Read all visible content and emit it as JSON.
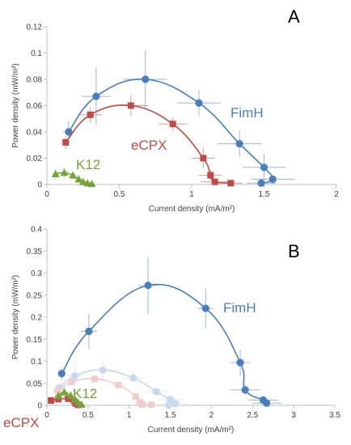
{
  "chart_data": [
    {
      "panel_label": "A",
      "type": "line",
      "title": "",
      "xlabel": "Current density (mA/m²)",
      "ylabel": "Power density (mW/m²)",
      "xlim": [
        0,
        2
      ],
      "ylim": [
        0,
        0.12
      ],
      "x_ticks": [
        "0",
        "0.5",
        "1",
        "1.5",
        "2"
      ],
      "y_ticks": [
        "0",
        "0.02",
        "0.04",
        "0.06",
        "0.08",
        "0.1",
        "0.12"
      ],
      "grid": false,
      "series": [
        {
          "name": "FimH",
          "color": "#4a7ebb",
          "marker": "circle",
          "x": [
            0.15,
            0.34,
            0.68,
            1.05,
            1.33,
            1.5,
            1.56,
            1.48
          ],
          "y": [
            0.04,
            0.067,
            0.08,
            0.062,
            0.031,
            0.013,
            0.004,
            0.001
          ],
          "x_err": [
            0.04,
            0.1,
            0.15,
            0.15,
            0.15,
            0.15,
            0.15,
            0.1
          ],
          "y_err": [
            0.008,
            0.022,
            0.022,
            0.01,
            0.01,
            0.01,
            0.003,
            0.002
          ]
        },
        {
          "name": "eCPX",
          "color": "#be4b48",
          "marker": "square",
          "x": [
            0.13,
            0.3,
            0.58,
            0.87,
            1.08,
            1.13,
            1.16,
            1.27
          ],
          "y": [
            0.032,
            0.053,
            0.06,
            0.046,
            0.02,
            0.007,
            0.002,
            0.001
          ],
          "x_err": [
            0.03,
            0.08,
            0.12,
            0.1,
            0.08,
            0.08,
            0.1,
            0.08
          ],
          "y_err": [
            0.005,
            0.006,
            0.008,
            0.005,
            0.008,
            0.004,
            0.002,
            0.001
          ]
        },
        {
          "name": "K12",
          "color": "#77a33c",
          "marker": "triangle",
          "x": [
            0.06,
            0.12,
            0.18,
            0.22,
            0.25,
            0.28,
            0.31
          ],
          "y": [
            0.008,
            0.009,
            0.007,
            0.004,
            0.002,
            0.001,
            0.0005
          ],
          "x_err": [
            0.02,
            0.02,
            0.02,
            0.02,
            0.02,
            0.02,
            0.02
          ],
          "y_err": [
            0.004,
            0.004,
            0.003,
            0.003,
            0.002,
            0.001,
            0.001
          ]
        }
      ]
    },
    {
      "panel_label": "B",
      "type": "line",
      "title": "",
      "xlabel": "Current density (mA/m²)",
      "ylabel": "Power density (mW/m²)",
      "xlim": [
        0,
        3.5
      ],
      "ylim": [
        0,
        0.4
      ],
      "x_ticks": [
        "0",
        "0.5",
        "1",
        "1.5",
        "2",
        "2.5",
        "3",
        "3.5"
      ],
      "y_ticks": [
        "0",
        "0.05",
        "0.1",
        "0.15",
        "0.2",
        "0.25",
        "0.3",
        "0.35",
        "0.4"
      ],
      "grid": false,
      "series": [
        {
          "name": "FimH",
          "color": "#4a7ebb",
          "marker": "circle",
          "x": [
            0.18,
            0.51,
            1.23,
            1.93,
            2.35,
            2.41,
            2.63,
            2.67
          ],
          "y": [
            0.072,
            0.168,
            0.272,
            0.22,
            0.097,
            0.035,
            0.012,
            0.005
          ],
          "x_err": [
            0.05,
            0.1,
            0.12,
            0.1,
            0.12,
            0.18,
            0.18,
            0.18
          ],
          "y_err": [
            0.015,
            0.04,
            0.065,
            0.045,
            0.03,
            0.012,
            0.006,
            0.004
          ]
        },
        {
          "name": "FimH (faded)",
          "color": "#c8d8ee",
          "marker": "circle",
          "x": [
            0.15,
            0.34,
            0.68,
            1.05,
            1.33,
            1.5,
            1.56,
            1.48
          ],
          "y": [
            0.04,
            0.067,
            0.08,
            0.062,
            0.031,
            0.013,
            0.004,
            0.001
          ],
          "x_err": [
            0.04,
            0.1,
            0.15,
            0.15,
            0.15,
            0.15,
            0.15,
            0.1
          ],
          "y_err": [
            0.008,
            0.022,
            0.022,
            0.01,
            0.01,
            0.01,
            0.003,
            0.002
          ]
        },
        {
          "name": "eCPX (faded)",
          "color": "#f0cccc",
          "marker": "square",
          "x": [
            0.13,
            0.3,
            0.58,
            0.87,
            1.08,
            1.13,
            1.16,
            1.27
          ],
          "y": [
            0.032,
            0.053,
            0.06,
            0.046,
            0.02,
            0.007,
            0.002,
            0.001
          ],
          "x_err": [
            0.03,
            0.08,
            0.12,
            0.1,
            0.08,
            0.08,
            0.1,
            0.08
          ],
          "y_err": [
            0.005,
            0.006,
            0.008,
            0.005,
            0.008,
            0.004,
            0.002,
            0.001
          ]
        },
        {
          "name": "eCPX",
          "color": "#be4b48",
          "marker": "square",
          "x": [
            0.05,
            0.14,
            0.26,
            0.33,
            0.35,
            0.38
          ],
          "y": [
            0.011,
            0.014,
            0.015,
            0.01,
            0.004,
            0.001
          ],
          "x_err": [
            0.03,
            0.04,
            0.05,
            0.04,
            0.04,
            0.03
          ],
          "y_err": [
            0.005,
            0.006,
            0.006,
            0.005,
            0.003,
            0.001
          ]
        },
        {
          "name": "K12",
          "color": "#77a33c",
          "marker": "triangle",
          "x": [
            0.14,
            0.21,
            0.29,
            0.34,
            0.38,
            0.42
          ],
          "y": [
            0.022,
            0.03,
            0.022,
            0.013,
            0.006,
            0.002
          ],
          "x_err": [
            0.04,
            0.05,
            0.05,
            0.05,
            0.05,
            0.04
          ],
          "y_err": [
            0.01,
            0.014,
            0.01,
            0.008,
            0.004,
            0.002
          ]
        }
      ]
    }
  ]
}
